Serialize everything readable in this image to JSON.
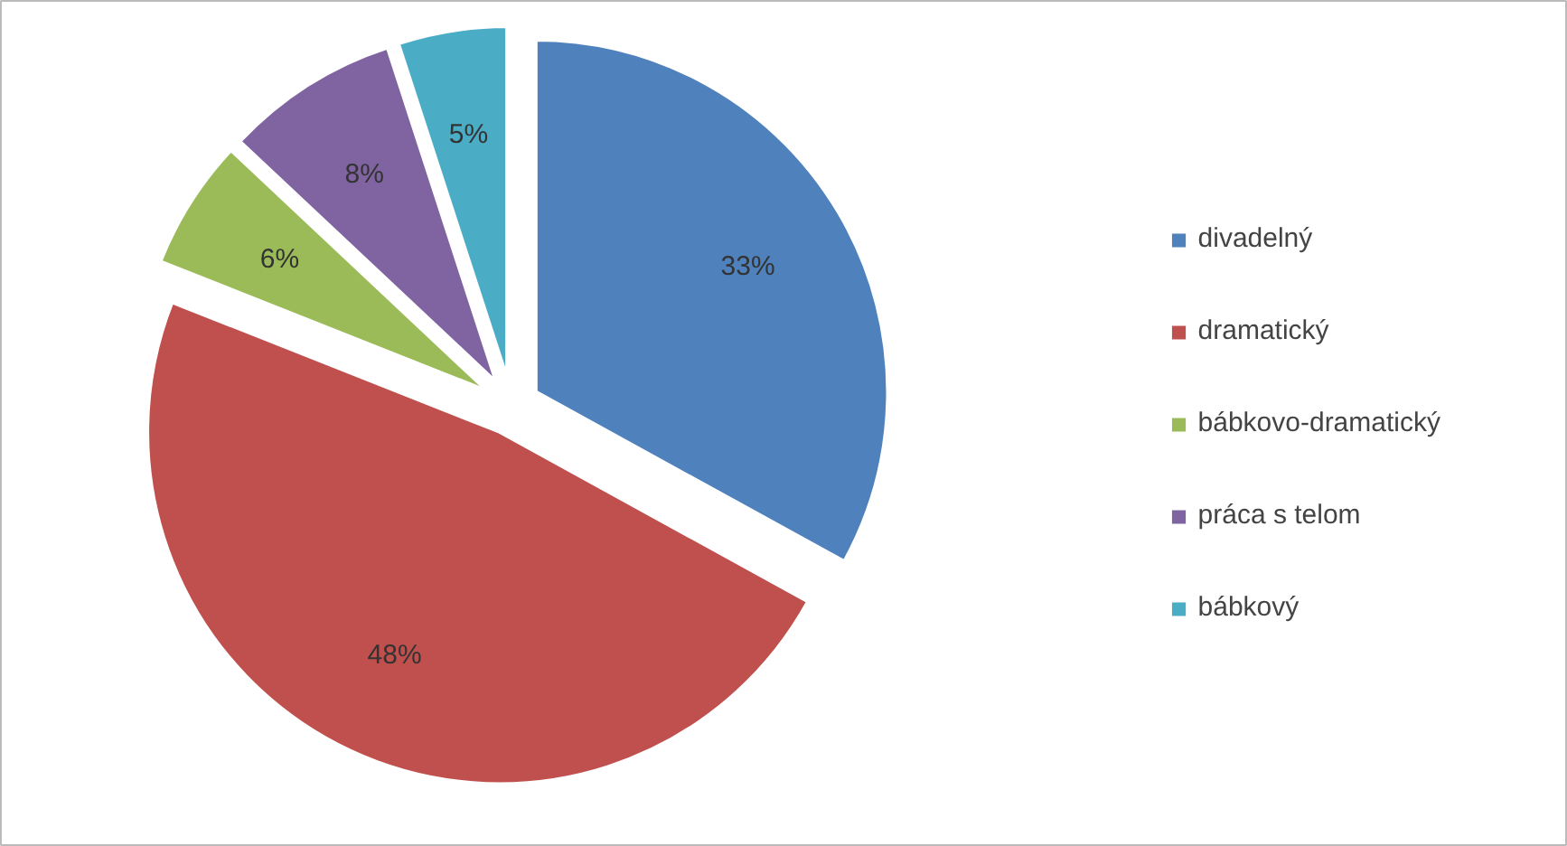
{
  "chart_data": {
    "type": "pie",
    "categories": [
      "divadelný",
      "dramatický",
      "bábkovo-dramatický",
      "práca s telom",
      "bábkový"
    ],
    "values": [
      33,
      48,
      6,
      8,
      5
    ],
    "colors": [
      "#4f81bd",
      "#c0504d",
      "#9bbb59",
      "#8064a2",
      "#4bacc6"
    ],
    "value_labels": [
      "33%",
      "48%",
      "6%",
      "8%",
      "5%"
    ],
    "legend": "right"
  }
}
